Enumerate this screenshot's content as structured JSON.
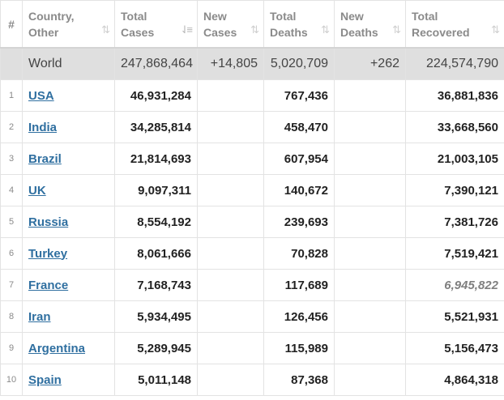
{
  "table": {
    "headers": {
      "index": "#",
      "country": [
        "Country,",
        "Other"
      ],
      "total_cases": [
        "Total",
        "Cases"
      ],
      "new_cases": [
        "New",
        "Cases"
      ],
      "total_deaths": [
        "Total",
        "Deaths"
      ],
      "new_deaths": [
        "New",
        "Deaths"
      ],
      "total_recovered": [
        "Total",
        "Recovered"
      ]
    },
    "sort_icons": {
      "inactive": "⇅",
      "active": "⇃≡"
    },
    "world": {
      "country": "World",
      "total_cases": "247,868,464",
      "new_cases": "+14,805",
      "total_deaths": "5,020,709",
      "new_deaths": "+262",
      "total_recovered": "224,574,790"
    },
    "rows": [
      {
        "index": "1",
        "country": "USA",
        "total_cases": "46,931,284",
        "new_cases": "",
        "total_deaths": "767,436",
        "new_deaths": "",
        "total_recovered": "36,881,836",
        "recovered_estimated": false
      },
      {
        "index": "2",
        "country": "India",
        "total_cases": "34,285,814",
        "new_cases": "",
        "total_deaths": "458,470",
        "new_deaths": "",
        "total_recovered": "33,668,560",
        "recovered_estimated": false
      },
      {
        "index": "3",
        "country": "Brazil",
        "total_cases": "21,814,693",
        "new_cases": "",
        "total_deaths": "607,954",
        "new_deaths": "",
        "total_recovered": "21,003,105",
        "recovered_estimated": false
      },
      {
        "index": "4",
        "country": "UK",
        "total_cases": "9,097,311",
        "new_cases": "",
        "total_deaths": "140,672",
        "new_deaths": "",
        "total_recovered": "7,390,121",
        "recovered_estimated": false
      },
      {
        "index": "5",
        "country": "Russia",
        "total_cases": "8,554,192",
        "new_cases": "",
        "total_deaths": "239,693",
        "new_deaths": "",
        "total_recovered": "7,381,726",
        "recovered_estimated": false
      },
      {
        "index": "6",
        "country": "Turkey",
        "total_cases": "8,061,666",
        "new_cases": "",
        "total_deaths": "70,828",
        "new_deaths": "",
        "total_recovered": "7,519,421",
        "recovered_estimated": false
      },
      {
        "index": "7",
        "country": "France",
        "total_cases": "7,168,743",
        "new_cases": "",
        "total_deaths": "117,689",
        "new_deaths": "",
        "total_recovered": "6,945,822",
        "recovered_estimated": true
      },
      {
        "index": "8",
        "country": "Iran",
        "total_cases": "5,934,495",
        "new_cases": "",
        "total_deaths": "126,456",
        "new_deaths": "",
        "total_recovered": "5,521,931",
        "recovered_estimated": false
      },
      {
        "index": "9",
        "country": "Argentina",
        "total_cases": "5,289,945",
        "new_cases": "",
        "total_deaths": "115,989",
        "new_deaths": "",
        "total_recovered": "5,156,473",
        "recovered_estimated": false
      },
      {
        "index": "10",
        "country": "Spain",
        "total_cases": "5,011,148",
        "new_cases": "",
        "total_deaths": "87,368",
        "new_deaths": "",
        "total_recovered": "4,864,318",
        "recovered_estimated": false
      }
    ]
  }
}
